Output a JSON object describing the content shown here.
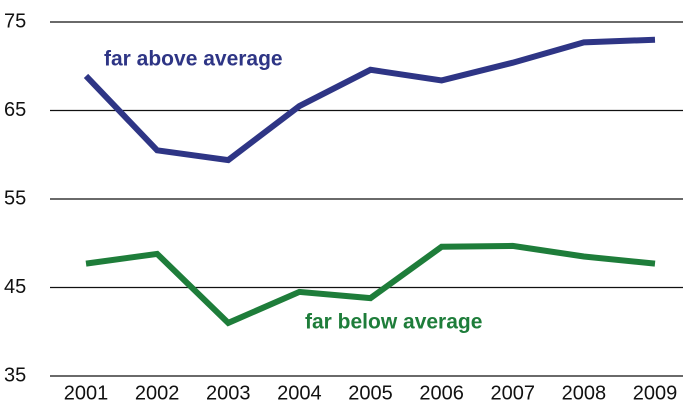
{
  "chart_data": {
    "type": "line",
    "categories": [
      "2001",
      "2002",
      "2003",
      "2004",
      "2005",
      "2006",
      "2007",
      "2008",
      "2009"
    ],
    "series": [
      {
        "name": "far above average",
        "color": "#2e3585",
        "values": [
          68.9,
          60.5,
          59.4,
          65.5,
          69.6,
          68.4,
          70.4,
          72.7,
          73.0
        ]
      },
      {
        "name": "far below average",
        "color": "#1e7d3a",
        "values": [
          47.7,
          48.8,
          41.0,
          44.5,
          43.8,
          49.6,
          49.7,
          48.5,
          47.7
        ]
      }
    ],
    "ylim": [
      35,
      75
    ],
    "yticks": [
      35,
      45,
      55,
      65,
      75
    ],
    "grid": true
  }
}
